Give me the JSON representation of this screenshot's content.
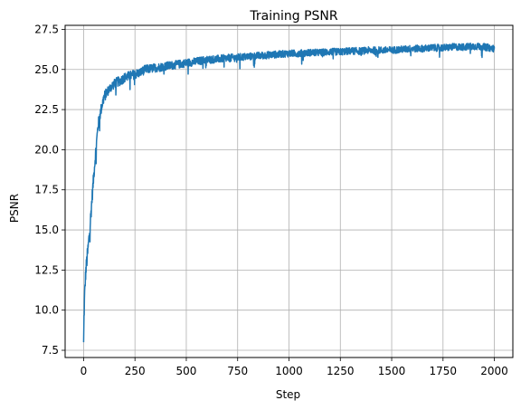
{
  "chart_data": {
    "type": "line",
    "title": "Training PSNR",
    "xlabel": "Step",
    "ylabel": "PSNR",
    "xlim": [
      -90,
      2090
    ],
    "ylim": [
      7.05,
      27.75
    ],
    "xticks": [
      0,
      250,
      500,
      750,
      1000,
      1250,
      1500,
      1750,
      2000
    ],
    "xtick_labels": [
      "0",
      "250",
      "500",
      "750",
      "1000",
      "1250",
      "1500",
      "1750",
      "2000"
    ],
    "yticks": [
      7.5,
      10.0,
      12.5,
      15.0,
      17.5,
      20.0,
      22.5,
      25.0,
      27.5
    ],
    "ytick_labels": [
      "7.5",
      "10.0",
      "12.5",
      "15.0",
      "17.5",
      "20.0",
      "22.5",
      "25.0",
      "27.5"
    ],
    "grid": true,
    "series": [
      {
        "color": "#1f77b4",
        "x": [
          0,
          2,
          5,
          10,
          15,
          20,
          30,
          40,
          50,
          60,
          70,
          80,
          90,
          100,
          120,
          140,
          160,
          180,
          200,
          225,
          250,
          275,
          300,
          350,
          400,
          450,
          500,
          550,
          600,
          650,
          700,
          750,
          800,
          850,
          900,
          950,
          1000,
          1050,
          1100,
          1150,
          1200,
          1250,
          1300,
          1350,
          1400,
          1450,
          1500,
          1550,
          1600,
          1650,
          1700,
          1750,
          1800,
          1850,
          1900,
          1950,
          2000
        ],
        "y": [
          8.0,
          9.5,
          11.0,
          12.3,
          13.0,
          13.6,
          15.0,
          16.8,
          18.5,
          20.0,
          21.5,
          22.2,
          22.8,
          23.3,
          23.7,
          24.0,
          24.2,
          24.3,
          24.5,
          24.6,
          24.7,
          24.8,
          25.0,
          25.1,
          25.2,
          25.3,
          25.4,
          25.5,
          25.6,
          25.65,
          25.7,
          25.75,
          25.8,
          25.85,
          25.9,
          25.95,
          26.0,
          26.0,
          26.05,
          26.05,
          26.1,
          26.1,
          26.15,
          26.15,
          26.2,
          26.2,
          26.2,
          26.25,
          26.3,
          26.3,
          26.35,
          26.35,
          26.4,
          26.4,
          26.45,
          26.4,
          26.3
        ],
        "noise": [
          0.3,
          0.5,
          0.4,
          0.5,
          0.5,
          0.5,
          0.5,
          0.45,
          0.4,
          0.4,
          0.35,
          0.35,
          0.35,
          0.35,
          0.3,
          0.3,
          0.3,
          0.3,
          0.3,
          0.3,
          0.3,
          0.28,
          0.28,
          0.27,
          0.27,
          0.26,
          0.26,
          0.25,
          0.25,
          0.24,
          0.24,
          0.24,
          0.23,
          0.23,
          0.23,
          0.22,
          0.22,
          0.22,
          0.22,
          0.22,
          0.22,
          0.22,
          0.22,
          0.22,
          0.22,
          0.22,
          0.22,
          0.22,
          0.22,
          0.22,
          0.22,
          0.22,
          0.22,
          0.22,
          0.22,
          0.22,
          0.22
        ]
      }
    ]
  }
}
